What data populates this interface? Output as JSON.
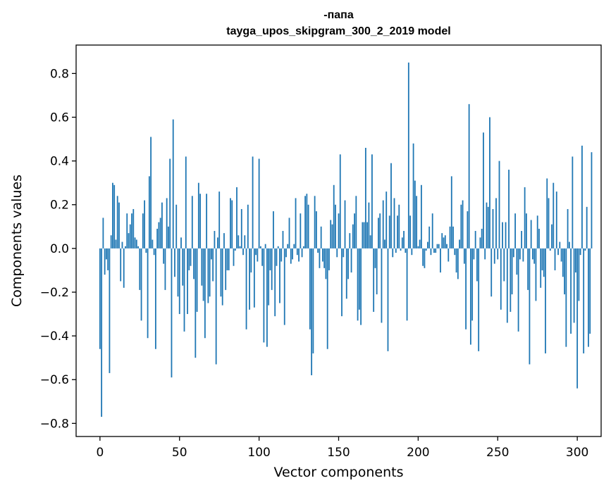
{
  "chart_data": {
    "type": "bar",
    "title_lines": [
      "-папа",
      "tayga_upos_skipgram_300_2_2019 model"
    ],
    "xlabel": "Vector components",
    "ylabel": "Components values",
    "xlim": [
      -15,
      315
    ],
    "ylim": [
      -0.86,
      0.93
    ],
    "xticks": [
      0,
      50,
      100,
      150,
      200,
      250,
      300
    ],
    "xtick_labels": [
      "0",
      "50",
      "100",
      "150",
      "200",
      "250",
      "300"
    ],
    "yticks": [
      -0.8,
      -0.6,
      -0.4,
      -0.2,
      0.0,
      0.2,
      0.4,
      0.6,
      0.8
    ],
    "ytick_labels": [
      "−0.8",
      "−0.6",
      "−0.4",
      "−0.2",
      "0.0",
      "0.2",
      "0.4",
      "0.6",
      "0.8"
    ],
    "grid": false,
    "bar_color": "#1f77b4",
    "x_start": 0,
    "values": [
      -0.46,
      -0.77,
      0.14,
      -0.12,
      -0.05,
      -0.1,
      -0.57,
      0.06,
      0.3,
      0.29,
      0.04,
      0.24,
      0.21,
      -0.15,
      0.03,
      -0.18,
      0.01,
      0.16,
      0.07,
      0.11,
      0.16,
      0.18,
      0.05,
      0.04,
      0.01,
      -0.19,
      -0.33,
      0.16,
      0.22,
      -0.02,
      -0.41,
      0.33,
      0.51,
      0.04,
      -0.03,
      -0.46,
      0.09,
      0.12,
      0.14,
      0.21,
      -0.07,
      -0.19,
      0.23,
      0.1,
      0.41,
      -0.59,
      0.59,
      -0.13,
      0.2,
      -0.22,
      -0.3,
      0.05,
      -0.17,
      -0.38,
      0.42,
      -0.3,
      -0.1,
      -0.08,
      0.24,
      -0.14,
      -0.5,
      -0.29,
      0.3,
      0.25,
      -0.17,
      -0.24,
      -0.41,
      0.25,
      -0.25,
      -0.22,
      -0.05,
      -0.15,
      0.08,
      -0.53,
      0.05,
      0.26,
      -0.22,
      -0.26,
      0.07,
      -0.19,
      -0.1,
      -0.1,
      0.23,
      0.22,
      -0.08,
      -0.01,
      0.28,
      0.06,
      0.01,
      0.18,
      -0.03,
      0.06,
      -0.37,
      0.2,
      -0.28,
      -0.11,
      0.42,
      -0.27,
      -0.03,
      -0.06,
      0.41,
      0.01,
      -0.08,
      -0.43,
      0.02,
      -0.45,
      -0.26,
      -0.1,
      -0.19,
      0.17,
      -0.31,
      -0.08,
      0.01,
      -0.25,
      -0.06,
      0.08,
      -0.35,
      -0.04,
      0.02,
      0.14,
      -0.07,
      -0.05,
      0.02,
      0.23,
      -0.03,
      -0.06,
      0.16,
      -0.04,
      0.01,
      0.24,
      0.25,
      0.2,
      -0.37,
      -0.58,
      -0.48,
      0.24,
      0.17,
      -0.02,
      -0.09,
      0.1,
      -0.06,
      -0.09,
      -0.14,
      -0.46,
      -0.1,
      0.13,
      0.11,
      0.29,
      0.2,
      -0.04,
      0.16,
      0.43,
      -0.31,
      -0.04,
      0.22,
      -0.23,
      -0.14,
      0.07,
      -0.11,
      0.11,
      0.16,
      0.24,
      -0.33,
      -0.28,
      -0.35,
      0.12,
      0.12,
      0.46,
      0.12,
      0.21,
      0.06,
      0.43,
      -0.29,
      -0.09,
      -0.21,
      0.14,
      0.16,
      -0.34,
      0.22,
      0.04,
      0.26,
      -0.47,
      0.15,
      0.39,
      -0.04,
      0.23,
      -0.02,
      0.15,
      0.2,
      -0.01,
      0.05,
      0.08,
      -0.02,
      -0.33,
      0.85,
      0.15,
      -0.03,
      0.48,
      0.31,
      0.24,
      0.01,
      0.04,
      0.29,
      -0.08,
      -0.09,
      -0.01,
      0.03,
      0.1,
      -0.03,
      0.16,
      -0.02,
      -0.02,
      0.02,
      0.02,
      -0.11,
      0.07,
      0.05,
      0.06,
      0.02,
      -0.06,
      0.1,
      0.33,
      0.1,
      -0.03,
      -0.11,
      -0.14,
      0.04,
      0.2,
      0.22,
      -0.07,
      -0.37,
      0.17,
      0.66,
      -0.44,
      -0.33,
      -0.05,
      0.08,
      -0.15,
      -0.47,
      0.05,
      0.09,
      0.53,
      -0.05,
      0.21,
      0.19,
      0.6,
      -0.22,
      0.18,
      -0.07,
      0.23,
      -0.05,
      0.4,
      -0.28,
      0.12,
      -0.15,
      0.12,
      -0.34,
      0.36,
      -0.29,
      -0.21,
      -0.04,
      0.16,
      -0.12,
      -0.38,
      -0.05,
      0.08,
      -0.06,
      0.28,
      0.16,
      -0.19,
      -0.53,
      0.13,
      -0.05,
      -0.07,
      -0.24,
      0.15,
      0.09,
      -0.18,
      -0.1,
      -0.13,
      -0.48,
      0.32,
      0.23,
      -0.01,
      0.11,
      0.3,
      -0.1,
      0.26,
      -0.03,
      0.03,
      -0.06,
      -0.13,
      -0.21,
      -0.45,
      0.18,
      0.03,
      -0.39,
      0.42,
      -0.34,
      -0.11,
      -0.64,
      -0.24,
      -0.03,
      0.47,
      -0.48,
      -0.01,
      0.19,
      -0.45,
      -0.39,
      0.44
    ]
  }
}
